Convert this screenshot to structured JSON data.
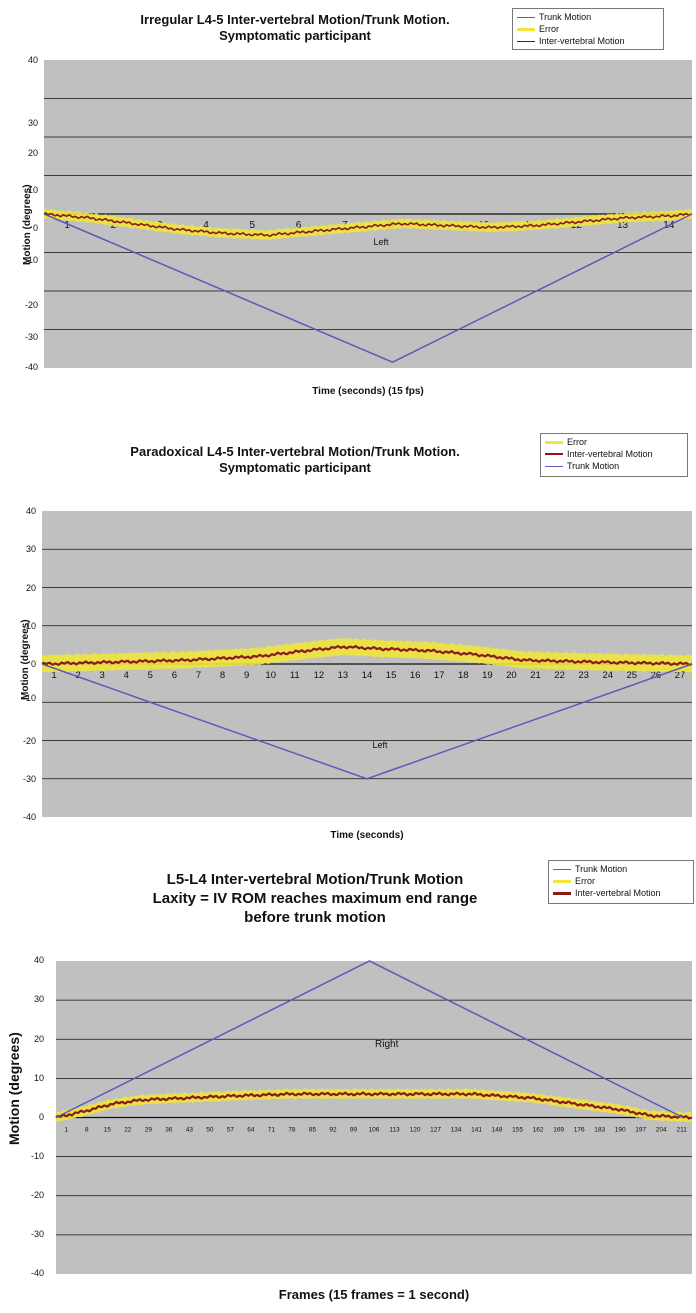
{
  "chart_data": [
    {
      "type": "line",
      "title_lines": [
        "Irregular L4-5 Inter-vertebral Motion/Trunk Motion.",
        "Symptomatic participant"
      ],
      "xlabel": "Time (seconds) (15 fps)",
      "ylabel": "Motion (degrees)",
      "ylim": [
        -40,
        40
      ],
      "yticks": [
        "40",
        "30",
        "20",
        "10",
        "0",
        "-10",
        "-20",
        "-30",
        "-40"
      ],
      "xlim": [
        0,
        14.5
      ],
      "xticks": [
        "1",
        "2",
        "3",
        "4",
        "5",
        "6",
        "7",
        "8",
        "9",
        "10",
        "11",
        "12",
        "13",
        "14"
      ],
      "annotation": "Left",
      "grid": true,
      "legend_position": "top-right",
      "legend": [
        "Trunk Motion",
        "Error",
        "Inter-vertebral Motion"
      ],
      "series": [
        {
          "name": "Trunk Motion",
          "color": "#5a5ab8",
          "x": [
            0,
            7.8,
            14.5
          ],
          "y": [
            0,
            -38.5,
            0
          ]
        },
        {
          "name": "Inter-vertebral Motion",
          "color": "#8b1a1a",
          "x": [
            0,
            1,
            2,
            3,
            4,
            5,
            6,
            7,
            8,
            9,
            10,
            11,
            12,
            13,
            14,
            14.5
          ],
          "y": [
            0,
            -1,
            -2.5,
            -4,
            -5,
            -5.5,
            -4.5,
            -3.5,
            -2.5,
            -3,
            -3.5,
            -3,
            -2,
            -1,
            -0.5,
            0
          ],
          "error": 1
        }
      ]
    },
    {
      "type": "line",
      "title_lines": [
        "Paradoxical L4-5 Inter-vertebral Motion/Trunk Motion.",
        "Symptomatic participant"
      ],
      "xlabel": "Time (seconds)",
      "ylabel": "Motion (degrees)",
      "ylim": [
        -40,
        40
      ],
      "yticks": [
        "40",
        "30",
        "20",
        "10",
        "0",
        "-10",
        "-20",
        "-30",
        "-40"
      ],
      "xlim": [
        1,
        28
      ],
      "xticks": [
        "1",
        "2",
        "3",
        "4",
        "5",
        "6",
        "7",
        "8",
        "9",
        "10",
        "11",
        "12",
        "13",
        "14",
        "15",
        "16",
        "17",
        "18",
        "19",
        "20",
        "21",
        "22",
        "23",
        "24",
        "25",
        "26",
        "27"
      ],
      "annotation": "Left",
      "grid": true,
      "legend_position": "top-right",
      "legend": [
        "Error",
        "Inter-vertebral Motion",
        "Trunk Motion"
      ],
      "series": [
        {
          "name": "Trunk Motion",
          "color": "#5a5ab8",
          "x": [
            1,
            14.5,
            28
          ],
          "y": [
            0,
            -30,
            0
          ]
        },
        {
          "name": "Inter-vertebral Motion",
          "color": "#8b1a1a",
          "x": [
            1,
            4,
            7,
            10,
            12,
            13.5,
            15,
            17,
            19,
            21,
            24,
            28
          ],
          "y": [
            0,
            0.5,
            1,
            2,
            3.5,
            4.5,
            4,
            3.5,
            2.5,
            1,
            0.5,
            0
          ],
          "error": 2
        }
      ]
    },
    {
      "type": "line",
      "title_lines": [
        "L5-L4 Inter-vertebral Motion/Trunk Motion",
        "Laxity = IV ROM reaches maximum end range",
        "before trunk motion"
      ],
      "xlabel": "Frames (15 frames = 1 second)",
      "ylabel": "Motion (degrees)",
      "ylim": [
        -40,
        40
      ],
      "yticks": [
        "40",
        "30",
        "20",
        "10",
        "0",
        "-10",
        "-20",
        "-30",
        "-40"
      ],
      "xlim": [
        1,
        214
      ],
      "xticks": [
        "1",
        "8",
        "15",
        "22",
        "29",
        "36",
        "43",
        "50",
        "57",
        "64",
        "71",
        "78",
        "85",
        "92",
        "99",
        "106",
        "113",
        "120",
        "127",
        "134",
        "141",
        "148",
        "155",
        "162",
        "169",
        "176",
        "183",
        "190",
        "197",
        "204",
        "211"
      ],
      "annotation": "Right",
      "grid": true,
      "legend_position": "top-right",
      "legend": [
        "Trunk Motion",
        "Error",
        "Inter-vertebral Motion"
      ],
      "series": [
        {
          "name": "Trunk Motion",
          "color": "#5a5ab8",
          "x": [
            1,
            106,
            211
          ],
          "y": [
            0,
            40,
            0
          ]
        },
        {
          "name": "Inter-vertebral Motion",
          "color": "#8b1a1a",
          "x": [
            1,
            10,
            20,
            30,
            45,
            60,
            80,
            100,
            120,
            140,
            150,
            160,
            170,
            180,
            190,
            200,
            214
          ],
          "y": [
            0,
            1.5,
            3.5,
            4.5,
            5,
            5.5,
            6,
            6,
            6,
            6,
            5.5,
            5,
            4,
            3,
            2,
            0.5,
            0
          ],
          "error": 1
        }
      ]
    }
  ]
}
